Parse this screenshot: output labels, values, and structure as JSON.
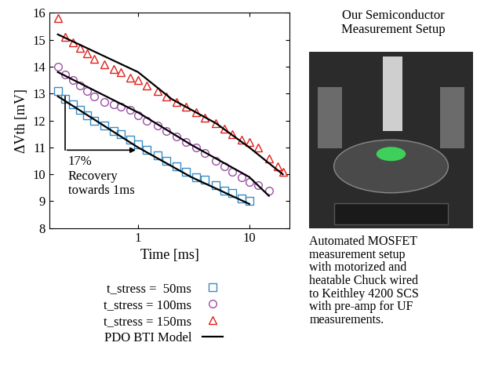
{
  "chart_data": {
    "type": "scatter",
    "xlabel": "Time [ms]",
    "ylabel": "ΔVth [mV]",
    "log": "x",
    "xlim": [
      0.16,
      23
    ],
    "xticks": [
      1,
      10
    ],
    "ylim": [
      8,
      16
    ],
    "yticks": [
      8,
      9,
      10,
      11,
      12,
      13,
      14,
      15,
      16
    ],
    "grid": false,
    "legend": "below",
    "annotation": "17%\nRecovery\ntowards 1ms",
    "series": [
      {
        "name": "t_stress =  50ms",
        "color": "#3a8cc4",
        "marker": "square",
        "x": [
          0.19,
          0.22,
          0.26,
          0.3,
          0.35,
          0.4,
          0.5,
          0.6,
          0.7,
          0.85,
          1.0,
          1.2,
          1.5,
          1.8,
          2.2,
          2.7,
          3.3,
          4,
          5,
          6,
          7,
          8.5,
          10
        ],
        "values": [
          13.1,
          12.8,
          12.6,
          12.4,
          12.2,
          12.0,
          11.8,
          11.6,
          11.5,
          11.3,
          11.1,
          10.9,
          10.7,
          10.5,
          10.3,
          10.1,
          9.9,
          9.8,
          9.6,
          9.4,
          9.3,
          9.1,
          9.0
        ]
      },
      {
        "name": "t_stress = 100ms",
        "color": "#9b4fa5",
        "marker": "circle",
        "x": [
          0.19,
          0.22,
          0.26,
          0.3,
          0.35,
          0.4,
          0.5,
          0.6,
          0.7,
          0.85,
          1.0,
          1.2,
          1.5,
          1.8,
          2.2,
          2.7,
          3.3,
          4,
          5,
          6,
          7,
          8.5,
          10,
          12,
          15
        ],
        "values": [
          14.0,
          13.7,
          13.5,
          13.3,
          13.1,
          12.9,
          12.7,
          12.6,
          12.5,
          12.4,
          12.2,
          12.0,
          11.8,
          11.6,
          11.4,
          11.2,
          11.0,
          10.8,
          10.5,
          10.3,
          10.1,
          9.9,
          9.7,
          9.6,
          9.4
        ]
      },
      {
        "name": "t_stress = 150ms",
        "color": "#e0201b",
        "marker": "triangle",
        "x": [
          0.19,
          0.22,
          0.26,
          0.3,
          0.35,
          0.4,
          0.5,
          0.6,
          0.7,
          0.85,
          1.0,
          1.2,
          1.5,
          1.8,
          2.2,
          2.7,
          3.3,
          4,
          5,
          6,
          7,
          8.5,
          10,
          12,
          15,
          18,
          20
        ],
        "values": [
          15.8,
          15.1,
          14.9,
          14.7,
          14.5,
          14.3,
          14.1,
          13.9,
          13.8,
          13.6,
          13.5,
          13.3,
          13.1,
          12.9,
          12.7,
          12.5,
          12.3,
          12.1,
          11.9,
          11.7,
          11.5,
          11.3,
          11.2,
          11.0,
          10.6,
          10.3,
          10.1
        ]
      }
    ],
    "model": {
      "name": "PDO BTI Model",
      "color": "#000000",
      "type": "line",
      "curves": [
        {
          "x": [
            0.19,
            1,
            3,
            10
          ],
          "values": [
            12.9,
            11.0,
            9.9,
            8.9
          ]
        },
        {
          "x": [
            0.19,
            1,
            3,
            10,
            15
          ],
          "values": [
            13.8,
            12.3,
            11.1,
            9.9,
            9.2
          ]
        },
        {
          "x": [
            0.19,
            1,
            2,
            5,
            10,
            20
          ],
          "values": [
            15.2,
            13.8,
            12.8,
            11.9,
            11.0,
            10.0
          ]
        }
      ]
    }
  },
  "side_panel": {
    "title": "Our Semiconductor\nMeasurement Setup",
    "caption": "Automated MOSFET\nmeasurement setup\nwith motorized and\nheatable Chuck wired\nto Keithley 4200 SCS\nwith pre-amp for UF\nmeasurements."
  }
}
